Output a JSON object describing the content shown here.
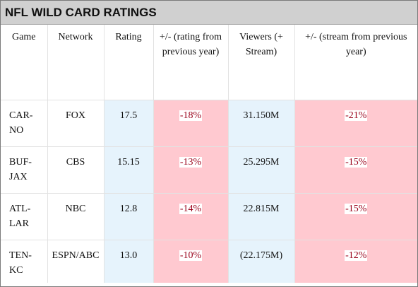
{
  "title": "NFL WILD CARD RATINGS",
  "headers": {
    "game": "Game",
    "network": "Network",
    "rating": "Rating",
    "rating_change": "+/- (rating from previous year)",
    "viewers": "Viewers (+ Stream)",
    "stream_change": "+/- (stream from previous year)"
  },
  "rows": [
    {
      "game": "CAR-NO",
      "network": "FOX",
      "rating": "17.5",
      "rating_change": "-18%",
      "viewers": "31.150M",
      "stream_change": "-21%"
    },
    {
      "game": "BUF-JAX",
      "network": "CBS",
      "rating": "15.15",
      "rating_change": "-13%",
      "viewers": "25.295M",
      "stream_change": "-15%"
    },
    {
      "game": "ATL-LAR",
      "network": "NBC",
      "rating": "12.8",
      "rating_change": "-14%",
      "viewers": "22.815M",
      "stream_change": "-15%"
    },
    {
      "game": "TEN-KC",
      "network": "ESPN/ABC",
      "rating": "13.0",
      "rating_change": "-10%",
      "viewers": "(22.175M)",
      "stream_change": "-12%"
    }
  ],
  "colors": {
    "title_background": "#d0d0d0",
    "highlight_blue": "#e6f3fc",
    "highlight_pink": "#ffc9d0",
    "negative_text": "#9a0019"
  }
}
